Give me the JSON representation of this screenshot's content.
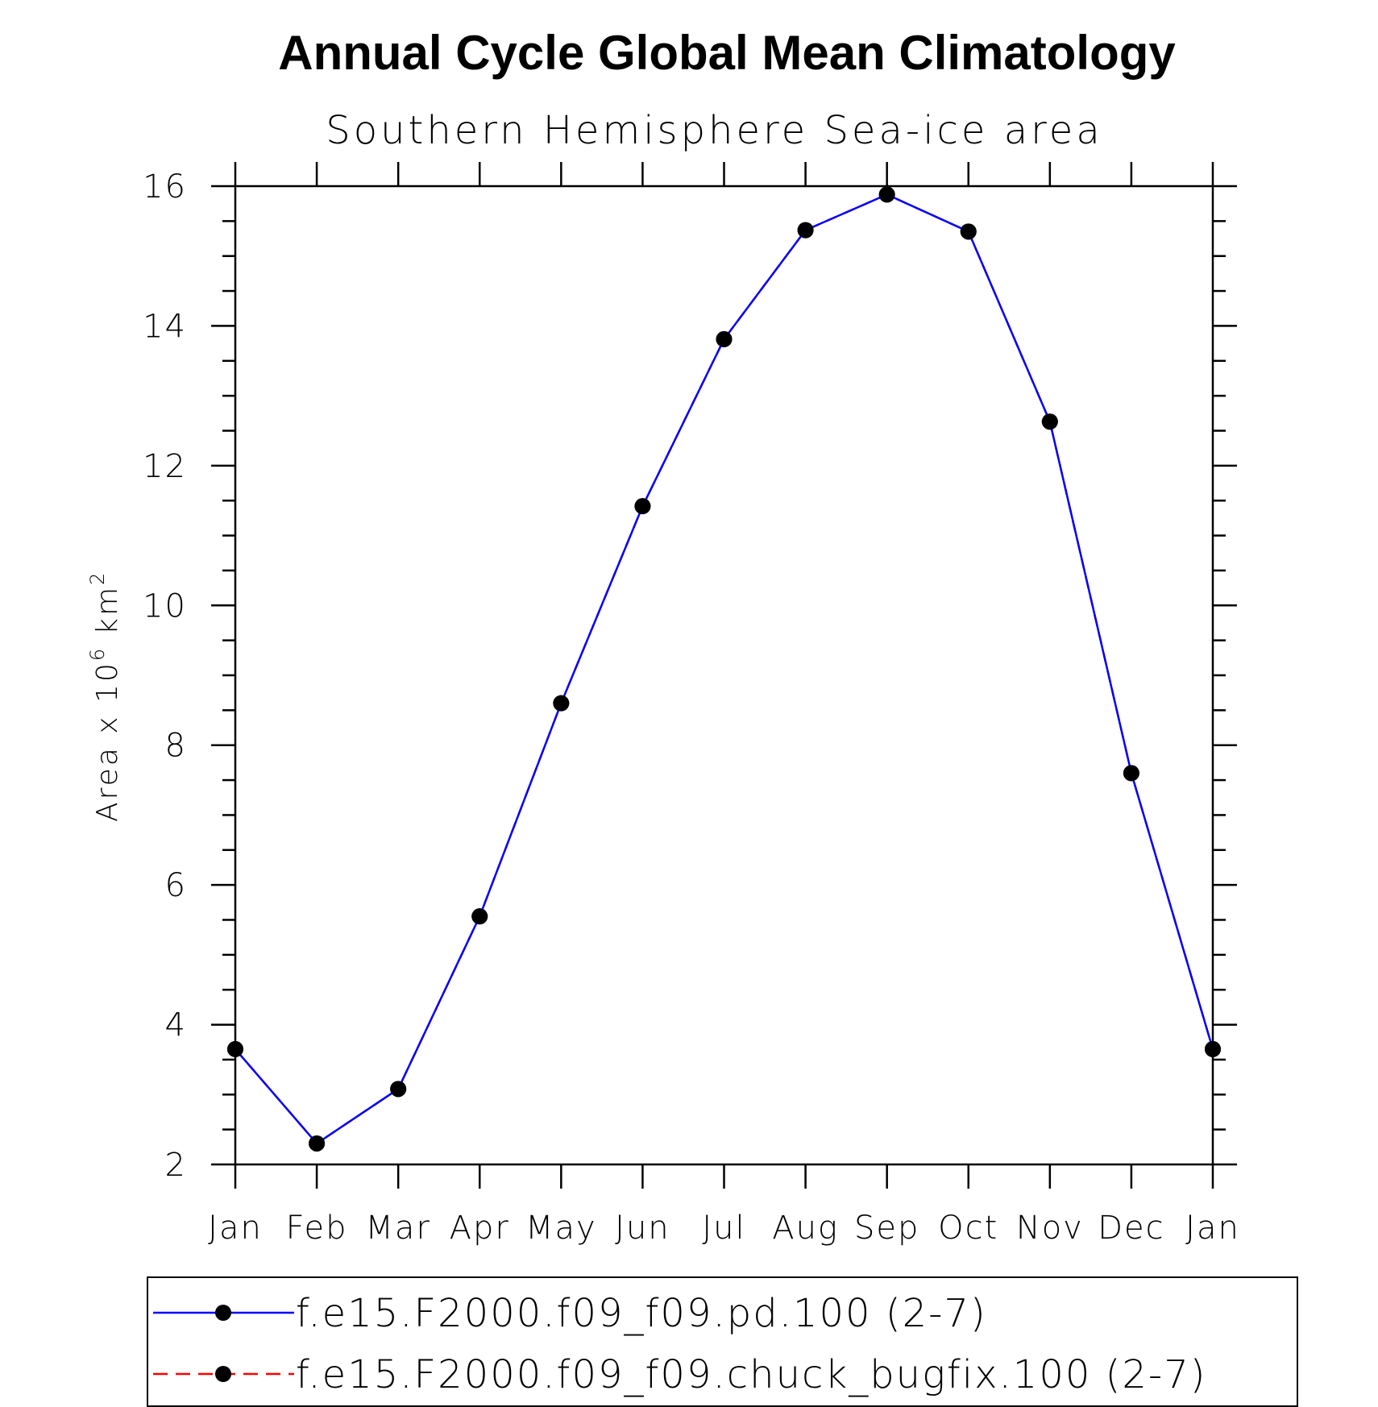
{
  "chart_data": {
    "type": "line",
    "title": "Annual Cycle Global Mean Climatology",
    "subtitle": "Southern Hemisphere Sea-ice area",
    "ylabel": "Area x 10",
    "ylabel_exponent": "6",
    "ylabel_unit": "km",
    "ylabel_unit_exponent": "2",
    "xlabel": "",
    "categories": [
      "Jan",
      "Feb",
      "Mar",
      "Apr",
      "May",
      "Jun",
      "Jul",
      "Aug",
      "Sep",
      "Oct",
      "Nov",
      "Dec",
      "Jan"
    ],
    "ylim": [
      2,
      16
    ],
    "yticks": [
      2,
      4,
      6,
      8,
      10,
      12,
      14,
      16
    ],
    "y_minor_step": 0.5,
    "grid": false,
    "legend_position": "bottom",
    "series": [
      {
        "name": "f.e15.F2000.f09_f09.pd.100 (2-7)",
        "color": "#0000ff",
        "line_style": "solid",
        "marker": "filled-circle",
        "marker_color": "#000000",
        "values": [
          3.65,
          2.3,
          3.08,
          5.55,
          8.6,
          11.42,
          13.81,
          15.37,
          15.88,
          15.35,
          12.63,
          7.6,
          3.65
        ]
      },
      {
        "name": "f.e15.F2000.f09_f09.chuck_bugfix.100 (2-7)",
        "color": "#ff0000",
        "line_style": "dashed",
        "marker": "filled-circle",
        "marker_color": "#000000",
        "values": [
          3.65,
          2.3,
          3.08,
          5.55,
          8.6,
          11.42,
          13.81,
          15.37,
          15.88,
          15.35,
          12.63,
          7.6,
          3.65
        ]
      }
    ]
  }
}
